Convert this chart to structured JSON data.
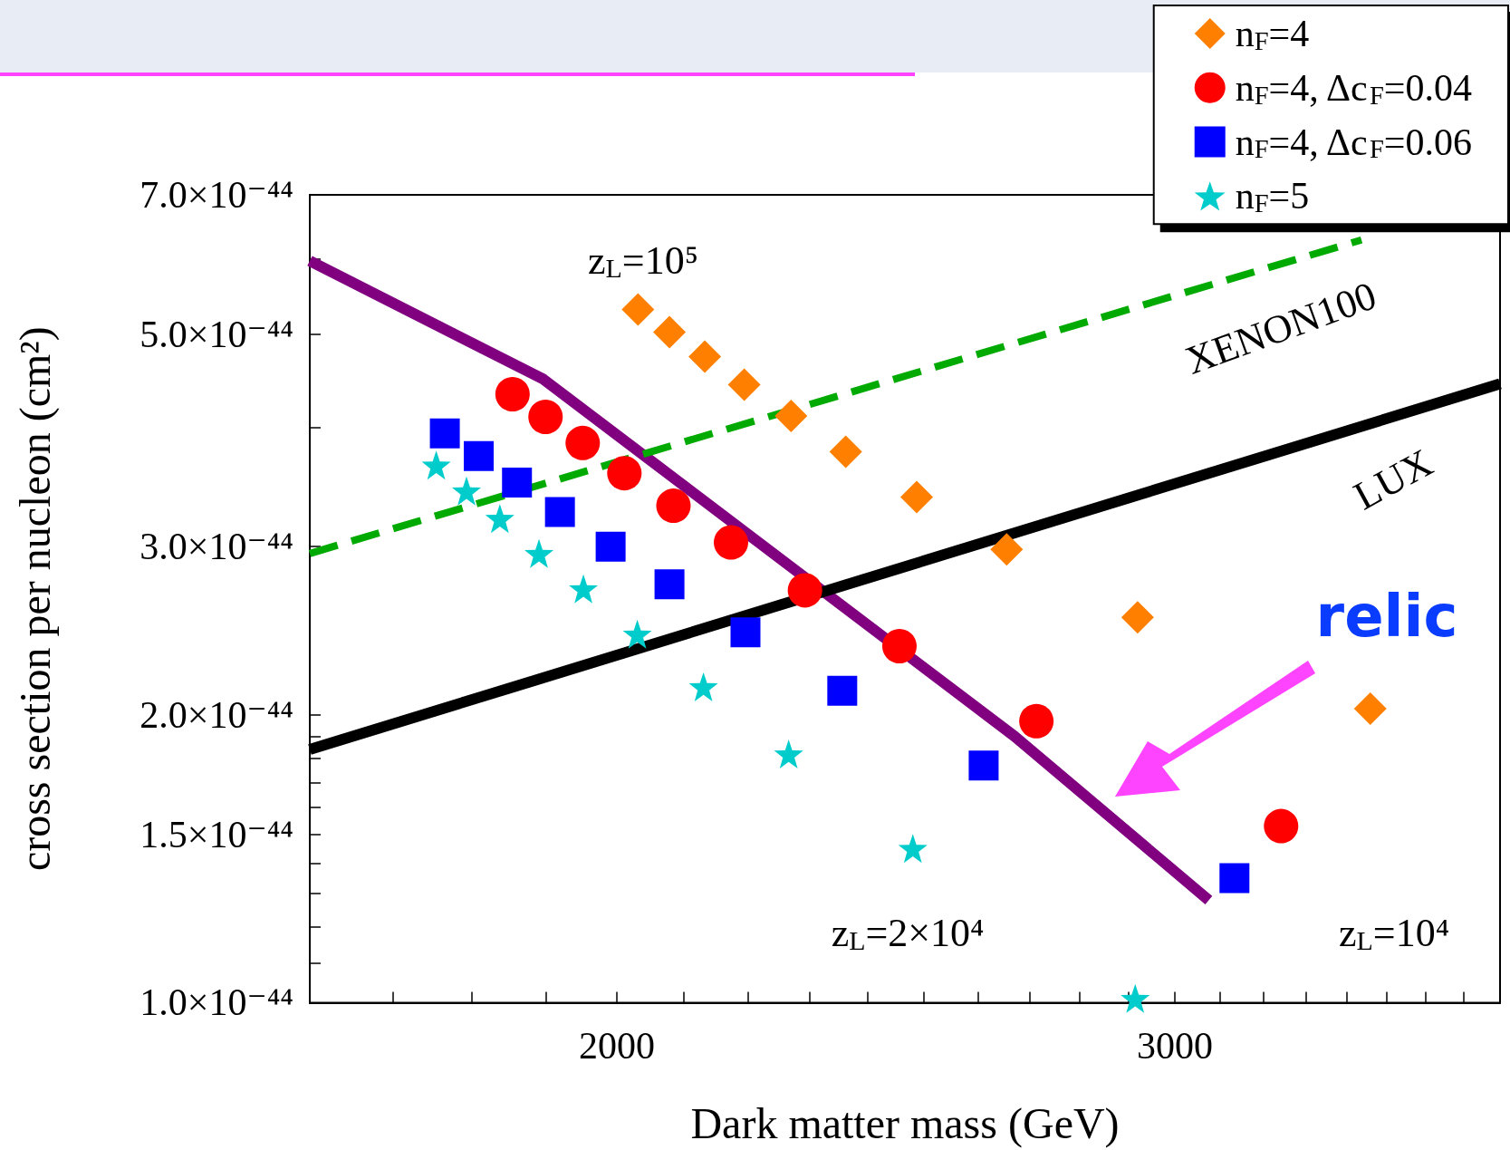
{
  "chart_data": {
    "type": "scatter",
    "xlabel": "Dark matter mass (GeV)",
    "ylabel": "cross section per nucleon (cm²)",
    "log": "xy",
    "xlim": [
      1600,
      3800
    ],
    "xticks": [
      {
        "value": 1600,
        "label": null
      },
      {
        "value": 1700,
        "label": null
      },
      {
        "value": 1800,
        "label": null
      },
      {
        "value": 1900,
        "label": null
      },
      2000,
      {
        "value": 2100,
        "label": null
      },
      {
        "value": 2200,
        "label": null
      },
      {
        "value": 2300,
        "label": null
      },
      {
        "value": 2400,
        "label": null
      },
      {
        "value": 2500,
        "label": null
      },
      {
        "value": 2600,
        "label": null
      },
      {
        "value": 2700,
        "label": null
      },
      {
        "value": 2800,
        "label": null
      },
      {
        "value": 2900,
        "label": null
      },
      3000,
      {
        "value": 3100,
        "label": null
      },
      {
        "value": 3200,
        "label": null
      },
      {
        "value": 3300,
        "label": null
      },
      {
        "value": 3400,
        "label": null
      },
      {
        "value": 3500,
        "label": null
      },
      {
        "value": 3600,
        "label": null
      },
      {
        "value": 3700,
        "label": null
      },
      {
        "value": 3800,
        "label": null
      }
    ],
    "ylim": [
      1e-44,
      7e-44
    ],
    "yticks": [
      {
        "value": 1e-44,
        "label": "1.0×10⁻⁴⁴"
      },
      {
        "value": 1.1e-44,
        "label": null
      },
      {
        "value": 1.2e-44,
        "label": null
      },
      {
        "value": 1.3e-44,
        "label": null
      },
      {
        "value": 1.4e-44,
        "label": null
      },
      {
        "value": 1.5e-44,
        "label": "1.5×10⁻⁴⁴"
      },
      {
        "value": 1.6e-44,
        "label": null
      },
      {
        "value": 1.7e-44,
        "label": null
      },
      {
        "value": 1.8e-44,
        "label": null
      },
      {
        "value": 1.9e-44,
        "label": null
      },
      {
        "value": 2e-44,
        "label": "2.0×10⁻⁴⁴"
      },
      {
        "value": 3e-44,
        "label": "3.0×10⁻⁴⁴"
      },
      {
        "value": 4e-44,
        "label": null
      },
      {
        "value": 5e-44,
        "label": "5.0×10⁻⁴⁴"
      },
      {
        "value": 6e-44,
        "label": null
      },
      {
        "value": 7e-44,
        "label": "7.0×10⁻⁴⁴"
      }
    ],
    "grid": false,
    "legend": "top right",
    "series": [
      {
        "name": "n$_{F}$=4",
        "color": "#ff7f00",
        "marker": "diamond",
        "x": [
          2031,
          2078,
          2132,
          2194,
          2270,
          2362,
          2487,
          2655,
          2920,
          3458
        ],
        "values": [
          5.31e-44,
          5.03e-44,
          4.74e-44,
          4.43e-44,
          4.11e-44,
          3.77e-44,
          3.38e-44,
          2.98e-44,
          2.53e-44,
          2.03e-44
        ]
      },
      {
        "name": "n$_{F}$=4, Δc$_{F}$=0.04",
        "color": "#ff0000",
        "marker": "circle",
        "x": [
          1854,
          1899,
          1951,
          2011,
          2084,
          2173,
          2293,
          2456,
          2713,
          3241
        ],
        "values": [
          4.33e-44,
          4.1e-44,
          3.85e-44,
          3.58e-44,
          3.31e-44,
          3.03e-44,
          2.7e-44,
          2.36e-44,
          1.97e-44,
          1.53e-44
        ]
      },
      {
        "name": "n$_{F}$=4, Δc$_{F}$=0.06",
        "color": "#0000ff",
        "marker": "square",
        "x": [
          1765,
          1809,
          1860,
          1919,
          1991,
          2078,
          2196,
          2356,
          2611,
          3133
        ],
        "values": [
          3.94e-44,
          3.73e-44,
          3.5e-44,
          3.26e-44,
          3e-44,
          2.74e-44,
          2.44e-44,
          2.12e-44,
          1.77e-44,
          1.35e-44
        ]
      },
      {
        "name": "n$_{F}$=5",
        "color": "#00cccc",
        "marker": "star",
        "x": [
          1754,
          1793,
          1837,
          1890,
          1952,
          2030,
          2130,
          2266,
          2480,
          2915
        ],
        "values": [
          3.65e-44,
          3.43e-44,
          3.21e-44,
          2.95e-44,
          2.71e-44,
          2.43e-44,
          2.14e-44,
          1.82e-44,
          1.45e-44,
          1.01e-44
        ]
      },
      {
        "type": "line",
        "color": "#800080",
        "marker": "none",
        "line_style": "solid",
        "x": [
          1600,
          1896,
          2670,
          3075
        ],
        "values": [
          5.97e-44,
          4.49e-44,
          1.9e-44,
          1.28e-44
        ]
      },
      {
        "type": "line",
        "color": "#000000",
        "marker": "none",
        "line_style": "solid",
        "x": [
          1600,
          3800
        ],
        "values": [
          1.84e-44,
          4.44e-44
        ]
      },
      {
        "type": "line",
        "color": "#00aa00",
        "marker": "none",
        "line_style": "dashed",
        "x": [
          1600,
          3436
        ],
        "values": [
          2.95e-44,
          6.28e-44
        ]
      }
    ],
    "annotations": [
      "z$_{L}$=10⁵",
      "XENON100",
      "LUX",
      "relic",
      "z$_{L}$=2×10⁴",
      "z$_{L}$=10⁴"
    ]
  }
}
